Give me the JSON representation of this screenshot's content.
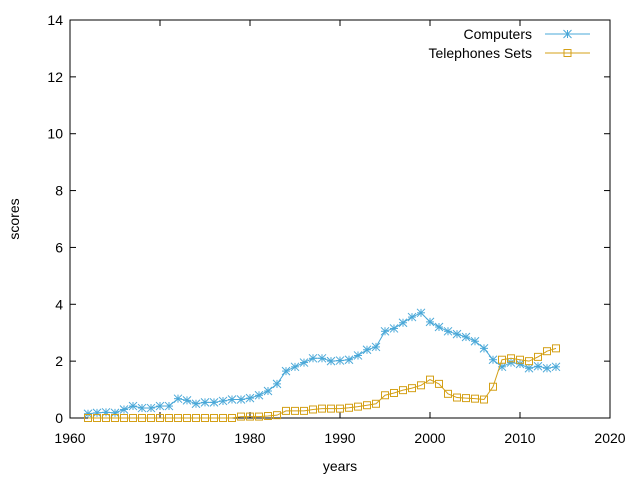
{
  "chart_data": {
    "type": "line",
    "title": "",
    "xlabel": "years",
    "ylabel": "scores",
    "xlim": [
      1960,
      2020
    ],
    "ylim": [
      0,
      14
    ],
    "xticks": [
      1960,
      1970,
      1980,
      1990,
      2000,
      2010,
      2020
    ],
    "yticks": [
      0,
      2,
      4,
      6,
      8,
      10,
      12,
      14
    ],
    "grid": false,
    "legend_position": "top-right",
    "x": [
      1962,
      1963,
      1964,
      1965,
      1966,
      1967,
      1968,
      1969,
      1970,
      1971,
      1972,
      1973,
      1974,
      1975,
      1976,
      1977,
      1978,
      1979,
      1980,
      1981,
      1982,
      1983,
      1984,
      1985,
      1986,
      1987,
      1988,
      1989,
      1990,
      1991,
      1992,
      1993,
      1994,
      1995,
      1996,
      1997,
      1998,
      1999,
      2000,
      2001,
      2002,
      2003,
      2004,
      2005,
      2006,
      2007,
      2008,
      2009,
      2010,
      2011,
      2012,
      2013,
      2014
    ],
    "series": [
      {
        "name": "Computers",
        "color": "#4aa8d8",
        "marker": "asterisk",
        "values": [
          0.15,
          0.18,
          0.2,
          0.18,
          0.3,
          0.42,
          0.35,
          0.35,
          0.42,
          0.42,
          0.68,
          0.62,
          0.5,
          0.55,
          0.55,
          0.6,
          0.65,
          0.65,
          0.7,
          0.8,
          0.95,
          1.2,
          1.65,
          1.8,
          1.95,
          2.1,
          2.1,
          2.0,
          2.02,
          2.05,
          2.2,
          2.4,
          2.5,
          3.05,
          3.15,
          3.35,
          3.55,
          3.7,
          3.38,
          3.2,
          3.05,
          2.95,
          2.85,
          2.7,
          2.45,
          2.05,
          1.8,
          1.95,
          1.9,
          1.75,
          1.82,
          1.75,
          1.8
        ]
      },
      {
        "name": "Telephones Sets",
        "color": "#d4a017",
        "marker": "square",
        "values": [
          0.0,
          0.0,
          0.0,
          0.0,
          0.0,
          0.0,
          0.0,
          0.0,
          0.0,
          0.0,
          0.0,
          0.0,
          0.0,
          0.0,
          0.0,
          0.0,
          0.0,
          0.05,
          0.05,
          0.05,
          0.07,
          0.1,
          0.25,
          0.25,
          0.25,
          0.3,
          0.33,
          0.33,
          0.33,
          0.36,
          0.4,
          0.45,
          0.5,
          0.8,
          0.88,
          0.98,
          1.05,
          1.15,
          1.35,
          1.2,
          0.85,
          0.72,
          0.7,
          0.68,
          0.65,
          1.1,
          2.05,
          2.1,
          2.05,
          2.0,
          2.15,
          2.35,
          2.45
        ]
      }
    ]
  }
}
